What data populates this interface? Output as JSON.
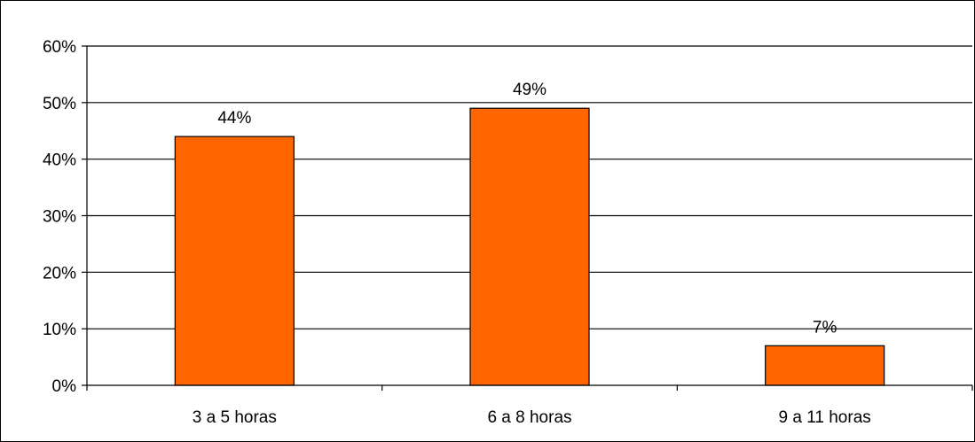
{
  "chart_data": {
    "type": "bar",
    "categories": [
      "3 a 5 horas",
      "6 a 8 horas",
      "9 a 11 horas"
    ],
    "values": [
      44,
      49,
      7
    ],
    "data_labels": [
      "44%",
      "49%",
      "7%"
    ],
    "ylim": [
      0,
      60
    ],
    "yticks": [
      0,
      10,
      20,
      30,
      40,
      50,
      60
    ],
    "ytick_labels": [
      "0%",
      "10%",
      "20%",
      "30%",
      "40%",
      "50%",
      "60%"
    ],
    "grid": true,
    "legend": false,
    "bar_color": "#FF6600",
    "bar_edge_color": "#000000"
  }
}
